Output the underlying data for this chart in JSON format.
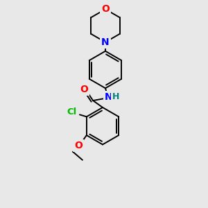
{
  "background_color": "#e8e8e8",
  "bond_color": "#000000",
  "atom_colors": {
    "O": "#ff0000",
    "N": "#0000ff",
    "Cl": "#00bb00",
    "C": "#000000",
    "H": "#008080"
  },
  "figsize": [
    3.0,
    3.0
  ],
  "dpi": 100
}
